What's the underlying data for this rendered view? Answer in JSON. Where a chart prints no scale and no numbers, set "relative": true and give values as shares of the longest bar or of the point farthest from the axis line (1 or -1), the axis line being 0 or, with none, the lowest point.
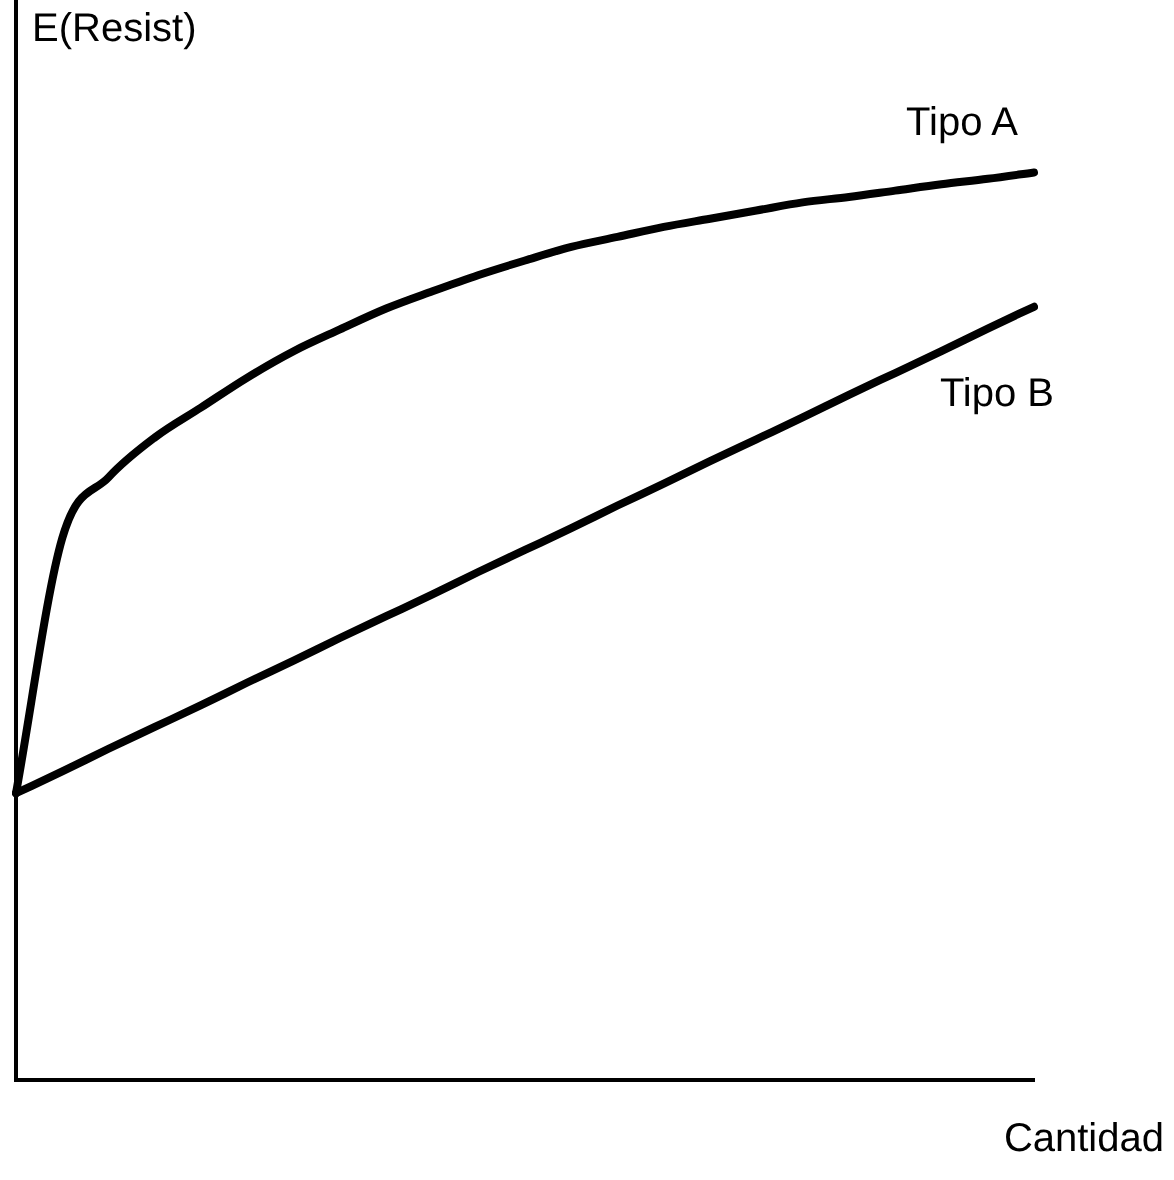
{
  "chart_data": {
    "type": "line",
    "relative": true,
    "xlabel": "Cantidad",
    "ylabel": "E(Resist)",
    "marker": "none",
    "categories": [
      null,
      null,
      null,
      null,
      null,
      null,
      null,
      null,
      null,
      null,
      null,
      null,
      null,
      null,
      null,
      null,
      null,
      null,
      null,
      null,
      null,
      null,
      null
    ],
    "series": [
      {
        "name": "Tipo A",
        "color": "#000000",
        "values": [
          0.316,
          0.597,
          0.664,
          0.708,
          0.741,
          0.774,
          0.803,
          0.827,
          0.85,
          0.869,
          0.887,
          0.903,
          0.918,
          0.929,
          0.94,
          0.949,
          0.958,
          0.967,
          0.973,
          0.98,
          0.987,
          0.993,
          1
        ]
      },
      {
        "name": "Tipo B",
        "color": "#000000",
        "values": [
          0.316,
          0.34,
          0.365,
          0.389,
          0.413,
          0.438,
          0.462,
          0.487,
          0.511,
          0.535,
          0.56,
          0.584,
          0.608,
          0.633,
          0.657,
          0.682,
          0.706,
          0.73,
          0.755,
          0.779,
          0.803,
          0.828,
          0.852
        ]
      }
    ]
  }
}
